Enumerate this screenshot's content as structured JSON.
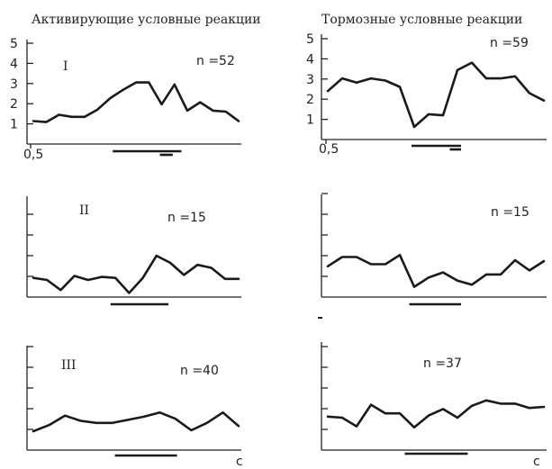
{
  "columns": {
    "left_title": "Активирующие условные реакции",
    "right_title": "Тормозные условные реакции"
  },
  "x_unit_label": "с",
  "chart_data": [
    {
      "type": "line",
      "panel_label": "I",
      "n_text": "n =52",
      "y_ticks": [
        "5",
        "4",
        "3",
        "2",
        "1"
      ],
      "x_tick_labels": [
        "0,5"
      ],
      "ylim": [
        0,
        5
      ],
      "values": [
        1.1,
        1.05,
        1.4,
        1.3,
        1.3,
        1.65,
        2.2,
        2.6,
        2.95,
        2.95,
        1.9,
        2.85,
        1.6,
        2.0,
        1.6,
        1.55,
        1.1
      ],
      "bars": [
        [
          0.4,
          0.72
        ],
        [
          0.62,
          0.68
        ]
      ]
    },
    {
      "type": "line",
      "panel_label": "",
      "n_text": "n =59",
      "y_ticks": [
        "5",
        "4",
        "3",
        "2",
        "1"
      ],
      "x_tick_labels": [
        "0,5"
      ],
      "ylim": [
        0,
        5
      ],
      "values": [
        2.3,
        2.9,
        2.7,
        2.9,
        2.8,
        2.5,
        0.6,
        1.2,
        1.15,
        3.3,
        3.65,
        2.9,
        2.9,
        3.0,
        2.2,
        1.85
      ],
      "bars": [
        [
          0.4,
          0.62
        ],
        [
          0.57,
          0.62
        ]
      ]
    },
    {
      "type": "line",
      "panel_label": "II",
      "n_text": "n =15",
      "y_ticks": [],
      "x_tick_labels": [],
      "ylim": [
        0,
        5
      ],
      "values": [
        0.95,
        0.85,
        0.35,
        1.05,
        0.85,
        1.0,
        0.95,
        0.2,
        0.95,
        2.05,
        1.7,
        1.1,
        1.6,
        1.45,
        0.9,
        0.9
      ],
      "bars": [
        [
          0.39,
          0.66
        ]
      ]
    },
    {
      "type": "line",
      "panel_label": "",
      "n_text": "n =15",
      "y_ticks": [],
      "x_tick_labels": [],
      "ylim": [
        0,
        5
      ],
      "values": [
        1.5,
        1.95,
        1.95,
        1.6,
        1.6,
        2.05,
        0.5,
        0.95,
        1.2,
        0.8,
        0.6,
        1.1,
        1.1,
        1.8,
        1.3,
        1.75
      ],
      "bars": [
        [
          0.39,
          0.62
        ]
      ]
    },
    {
      "type": "line",
      "panel_label": "III",
      "n_text": "n =40",
      "y_ticks": [],
      "x_tick_labels": [],
      "ylim": [
        0,
        5
      ],
      "values": [
        0.9,
        1.2,
        1.65,
        1.4,
        1.3,
        1.3,
        1.45,
        1.6,
        1.8,
        1.5,
        0.95,
        1.3,
        1.8,
        1.15
      ],
      "bars": [
        [
          0.41,
          0.7
        ]
      ]
    },
    {
      "type": "line",
      "panel_label": "",
      "n_text": "n =37",
      "y_ticks": [],
      "x_tick_labels": [],
      "ylim": [
        0,
        5
      ],
      "values": [
        1.55,
        1.5,
        1.1,
        2.1,
        1.7,
        1.7,
        1.05,
        1.6,
        1.9,
        1.5,
        2.05,
        2.3,
        2.15,
        2.15,
        1.95,
        2.0
      ],
      "bars": [
        [
          0.37,
          0.65
        ]
      ]
    }
  ]
}
